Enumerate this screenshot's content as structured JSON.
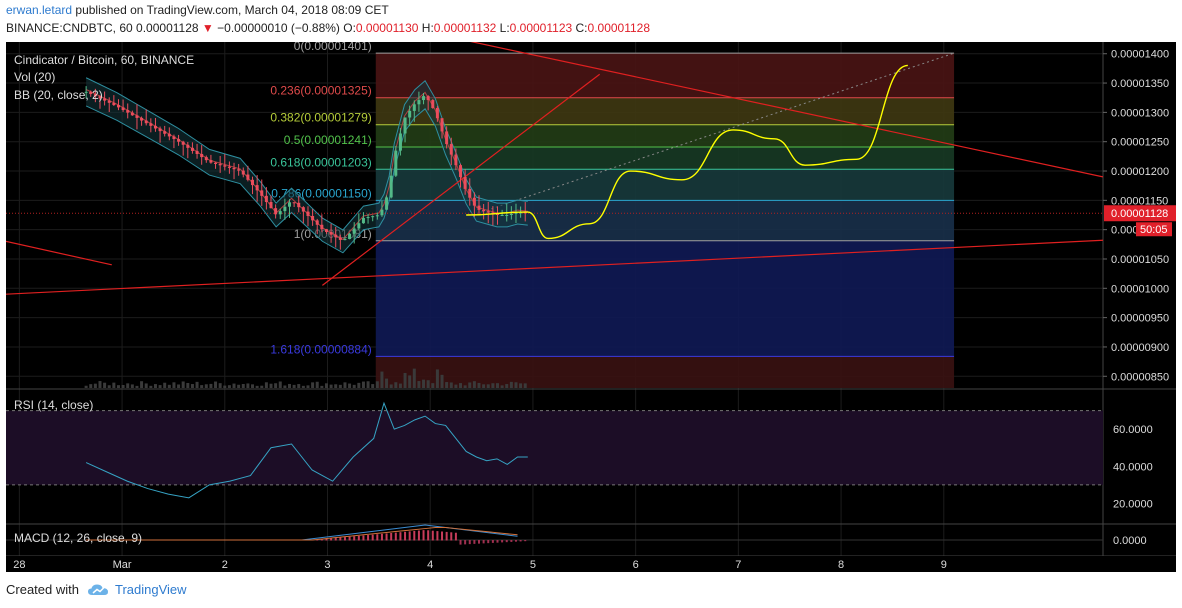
{
  "header": {
    "author": "erwan.letard",
    "published_text": "published on TradingView.com, March 04, 2018 08:09 CET",
    "symbol_line": "BINANCE:CNDBTC, 60",
    "last": "0.00001128",
    "change": "−0.00000010 (−0.88%)",
    "open_label": "O:",
    "open": "0.00001130",
    "high_label": "H:",
    "high": "0.00001132",
    "low_label": "L:",
    "low": "0.00001123",
    "close_label": "C:",
    "close": "0.00001128"
  },
  "legend": {
    "title": "Cindicator / Bitcoin, 60, BINANCE",
    "vol": "Vol (20)",
    "bb": "BB (20, close, 2)",
    "rsi": "RSI (14, close)",
    "macd": "MACD (12, 26, close, 9)"
  },
  "footer": {
    "created_with": "Created with",
    "brand": "TradingView"
  },
  "colors": {
    "bg": "#000000",
    "grid": "#1c1c1c",
    "up": "#53b987",
    "down": "#eb4d5c",
    "bb": "#2e8fa0",
    "trend": "#e02020",
    "projection": "#ffff00",
    "rsi": "#36a3c4",
    "price_tag": "#e0202a"
  },
  "chart_data": {
    "type": "line",
    "title": "Cindicator / Bitcoin, 60, BINANCE",
    "x_ticks": [
      "28",
      "Mar",
      "2",
      "3",
      "4",
      "5",
      "6",
      "7",
      "8",
      "9"
    ],
    "price_axis_ticks": [
      "0.00001400",
      "0.00001350",
      "0.00001300",
      "0.00001250",
      "0.00001200",
      "0.00001150",
      "0.00001100",
      "0.00001050",
      "0.00001000",
      "0.00000950",
      "0.00000900",
      "0.00000850"
    ],
    "ylim": [
      8.3e-06,
      1.42e-05
    ],
    "last_price_tag": "0.00001128",
    "countdown_tag": "50:05",
    "price_series": {
      "name": "",
      "x": [
        0,
        0.3,
        0.6,
        0.9,
        1.2,
        1.5,
        1.7,
        1.85,
        2.0,
        2.3,
        2.5,
        2.7,
        2.85,
        2.9,
        2.95,
        3.0,
        3.1,
        3.2,
        3.3,
        3.4,
        3.5,
        3.6,
        3.7,
        3.8,
        3.9,
        4.0,
        4.1,
        4.2,
        4.3
      ],
      "values": [
        1.335e-05,
        1.31e-05,
        1.28e-05,
        1.25e-05,
        1.215e-05,
        1.2e-05,
        1.16e-05,
        1.125e-05,
        1.15e-05,
        1.1e-05,
        1.08e-05,
        1.12e-05,
        1.125e-05,
        1.14e-05,
        1.17e-05,
        1.225e-05,
        1.29e-05,
        1.315e-05,
        1.33e-05,
        1.3e-05,
        1.25e-05,
        1.21e-05,
        1.165e-05,
        1.135e-05,
        1.13e-05,
        1.125e-05,
        1.125e-05,
        1.13e-05,
        1.128e-05
      ]
    },
    "projection_series": {
      "name": "",
      "x": [
        3.7,
        4.3,
        4.5,
        4.9,
        5.3,
        5.8,
        6.3,
        6.7,
        7.0,
        7.5,
        8.0
      ],
      "values": [
        1.125e-05,
        1.13e-05,
        1.085e-05,
        1.11e-05,
        1.2e-05,
        1.185e-05,
        1.27e-05,
        1.255e-05,
        1.21e-05,
        1.22e-05,
        1.38e-05
      ]
    },
    "fibonacci": [
      {
        "label": "0(0.00001401)",
        "level": 1.401e-05,
        "color": "#a0a0a0"
      },
      {
        "label": "0.236(0.00001325)",
        "level": 1.325e-05,
        "color": "#e04b4b"
      },
      {
        "label": "0.382(0.00001279)",
        "level": 1.279e-05,
        "color": "#b5cc3a"
      },
      {
        "label": "0.5(0.00001241)",
        "level": 1.241e-05,
        "color": "#52c24b"
      },
      {
        "label": "0.618(0.00001203)",
        "level": 1.203e-05,
        "color": "#3ac59a"
      },
      {
        "label": "0.786(0.00001150)",
        "level": 1.15e-05,
        "color": "#2aa7d0"
      },
      {
        "label": "1(0.00001081)",
        "level": 1.081e-05,
        "color": "#a0a0a0"
      },
      {
        "label": "1.618(0.00000884)",
        "level": 8.84e-06,
        "color": "#3a3ae0"
      }
    ],
    "rsi_panel": {
      "ticks": [
        "60.0000",
        "40.0000",
        "20.0000"
      ],
      "ylim": [
        10,
        80
      ],
      "bands": [
        70,
        30
      ],
      "x": [
        0,
        0.2,
        0.4,
        0.6,
        0.8,
        1.0,
        1.2,
        1.4,
        1.6,
        1.8,
        2.0,
        2.2,
        2.4,
        2.6,
        2.8,
        2.9,
        3.0,
        3.1,
        3.2,
        3.3,
        3.4,
        3.5,
        3.6,
        3.7,
        3.8,
        3.9,
        4.0,
        4.1,
        4.2,
        4.3
      ],
      "values": [
        42,
        37,
        32,
        28,
        25,
        23,
        30,
        32,
        35,
        50,
        52,
        38,
        32,
        45,
        55,
        74,
        60,
        62,
        65,
        67,
        63,
        62,
        55,
        48,
        45,
        43,
        44,
        41,
        45,
        45
      ]
    },
    "macd_panel": {
      "ticks": [
        "0.0000"
      ]
    }
  }
}
